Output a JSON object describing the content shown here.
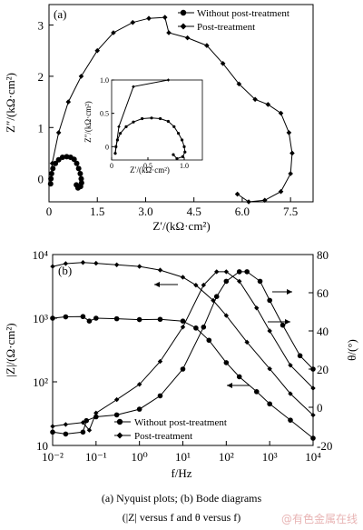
{
  "caption": {
    "line1": "(a) Nyquist plots; (b) Bode diagrams",
    "line2": "(|Z| versus f and θ versus f)"
  },
  "watermark": "@有色金属在线",
  "chart_data": [
    {
      "type": "scatter",
      "panel_label": "(a)",
      "xlabel": "Z′/(kΩ·cm²)",
      "ylabel": "Z″/(kΩ·cm²)",
      "xlim": [
        0,
        8.2
      ],
      "ylim": [
        -0.45,
        3.4
      ],
      "xticks": [
        "0",
        "1.5",
        "3.0",
        "4.5",
        "6.0",
        "7.5"
      ],
      "xtick_values": [
        0,
        1.5,
        3.0,
        4.5,
        6.0,
        7.5
      ],
      "yticks": [
        "0",
        "1",
        "2",
        "3"
      ],
      "ytick_values": [
        0,
        1,
        2,
        3
      ],
      "legend_position": "top-right",
      "series": [
        {
          "name": "Without post-treatment",
          "marker": "circle",
          "points": [
            [
              0.05,
              -0.1
            ],
            [
              0.06,
              0.0
            ],
            [
              0.08,
              0.1
            ],
            [
              0.12,
              0.2
            ],
            [
              0.2,
              0.3
            ],
            [
              0.3,
              0.37
            ],
            [
              0.42,
              0.42
            ],
            [
              0.55,
              0.43
            ],
            [
              0.67,
              0.42
            ],
            [
              0.78,
              0.38
            ],
            [
              0.86,
              0.3
            ],
            [
              0.92,
              0.2
            ],
            [
              0.97,
              0.1
            ],
            [
              1.0,
              0.0
            ],
            [
              1.01,
              -0.08
            ],
            [
              0.98,
              -0.15
            ],
            [
              0.9,
              -0.18
            ],
            [
              0.85,
              -0.12
            ]
          ]
        },
        {
          "name": "Post-treatment",
          "marker": "diamond",
          "points": [
            [
              0.05,
              -0.1
            ],
            [
              0.1,
              0.3
            ],
            [
              0.3,
              0.9
            ],
            [
              0.6,
              1.5
            ],
            [
              1.0,
              2.0
            ],
            [
              1.5,
              2.5
            ],
            [
              2.0,
              2.85
            ],
            [
              2.6,
              3.05
            ],
            [
              3.1,
              3.13
            ],
            [
              3.6,
              3.15
            ],
            [
              3.72,
              2.85
            ],
            [
              4.3,
              2.75
            ],
            [
              4.9,
              2.6
            ],
            [
              5.4,
              2.25
            ],
            [
              5.9,
              1.85
            ],
            [
              6.4,
              1.55
            ],
            [
              6.8,
              1.45
            ],
            [
              7.2,
              1.28
            ],
            [
              7.45,
              0.9
            ],
            [
              7.55,
              0.5
            ],
            [
              7.5,
              0.1
            ],
            [
              7.2,
              -0.25
            ],
            [
              6.7,
              -0.42
            ],
            [
              6.2,
              -0.45
            ],
            [
              5.85,
              -0.3
            ]
          ]
        }
      ],
      "inset": {
        "xlim": [
          0,
          1.25
        ],
        "ylim": [
          -0.2,
          1.0
        ],
        "xticks": [
          "0",
          "0.5",
          "1.0"
        ],
        "xtick_values": [
          0,
          0.5,
          1.0
        ],
        "yticks": [
          "0",
          "0.5",
          "1.0"
        ],
        "ytick_values": [
          0,
          0.5,
          1.0
        ],
        "xlabel": "Z′/(kΩ·cm²)",
        "ylabel": "Z″/(kΩ·cm²)"
      }
    },
    {
      "type": "line",
      "panel_label": "(b)",
      "xlabel": "f/Hz",
      "ylabel_left": "|Z|/(Ω·cm²)",
      "ylabel_right": "θ/(°)",
      "x_scale": "log",
      "xlim": [
        0.01,
        10000
      ],
      "xticks": [
        "10⁻²",
        "10⁻¹",
        "10⁰",
        "10¹",
        "10²",
        "10³",
        "10⁴"
      ],
      "xtick_values": [
        0.01,
        0.1,
        1,
        10,
        100,
        1000,
        10000
      ],
      "y_left_scale": "log",
      "y_left_lim": [
        10,
        10000
      ],
      "y_left_ticks": [
        "10",
        "10²",
        "10³",
        "10⁴"
      ],
      "y_left_tick_values": [
        10,
        100,
        1000,
        10000
      ],
      "y_right_lim": [
        -20,
        80
      ],
      "y_right_ticks": [
        "-20",
        "0",
        "20",
        "40",
        "60",
        "80"
      ],
      "y_right_tick_values": [
        -20,
        0,
        20,
        40,
        60,
        80
      ],
      "legend_position": "bottom-left",
      "series": [
        {
          "name": "Without post-treatment",
          "marker": "circle",
          "quantity": "|Z|",
          "axis": "left",
          "points": [
            [
              0.01,
              1000
            ],
            [
              0.02,
              1050
            ],
            [
              0.05,
              1060
            ],
            [
              0.07,
              900
            ],
            [
              0.1,
              1000
            ],
            [
              0.3,
              980
            ],
            [
              1,
              950
            ],
            [
              3,
              960
            ],
            [
              10,
              900
            ],
            [
              20,
              700
            ],
            [
              40,
              450
            ],
            [
              100,
              200
            ],
            [
              200,
              120
            ],
            [
              500,
              70
            ],
            [
              1000,
              45
            ],
            [
              3000,
              25
            ],
            [
              10000,
              13
            ]
          ]
        },
        {
          "name": "Post-treatment",
          "marker": "diamond",
          "quantity": "|Z|",
          "axis": "left",
          "points": [
            [
              0.01,
              6500
            ],
            [
              0.02,
              7200
            ],
            [
              0.05,
              7500
            ],
            [
              0.1,
              7300
            ],
            [
              0.3,
              6900
            ],
            [
              1,
              6500
            ],
            [
              3,
              5700
            ],
            [
              10,
              4400
            ],
            [
              20,
              3300
            ],
            [
              50,
              1900
            ],
            [
              100,
              1100
            ],
            [
              300,
              420
            ],
            [
              1000,
              160
            ],
            [
              3000,
              65
            ],
            [
              10000,
              30
            ]
          ]
        },
        {
          "name": "Without post-treatment",
          "marker": "circle",
          "quantity": "θ",
          "axis": "right",
          "points": [
            [
              0.01,
              -13
            ],
            [
              0.02,
              -14
            ],
            [
              0.05,
              -13
            ],
            [
              0.06,
              -7
            ],
            [
              0.1,
              -5
            ],
            [
              0.3,
              -4
            ],
            [
              1,
              -1
            ],
            [
              3,
              6
            ],
            [
              10,
              20
            ],
            [
              30,
              42
            ],
            [
              60,
              58
            ],
            [
              100,
              66
            ],
            [
              200,
              71
            ],
            [
              300,
              71
            ],
            [
              600,
              66
            ],
            [
              1000,
              56
            ],
            [
              2000,
              43
            ],
            [
              5000,
              27
            ],
            [
              10000,
              20
            ]
          ]
        },
        {
          "name": "Post-treatment",
          "marker": "diamond",
          "quantity": "θ",
          "axis": "right",
          "points": [
            [
              0.01,
              -10
            ],
            [
              0.02,
              -9
            ],
            [
              0.05,
              -8
            ],
            [
              0.07,
              -12
            ],
            [
              0.1,
              -3
            ],
            [
              0.3,
              4
            ],
            [
              1,
              12
            ],
            [
              3,
              24
            ],
            [
              10,
              42
            ],
            [
              30,
              64
            ],
            [
              60,
              71
            ],
            [
              100,
              71
            ],
            [
              200,
              66
            ],
            [
              500,
              52
            ],
            [
              1000,
              40
            ],
            [
              3000,
              22
            ],
            [
              10000,
              10
            ]
          ]
        }
      ]
    }
  ]
}
